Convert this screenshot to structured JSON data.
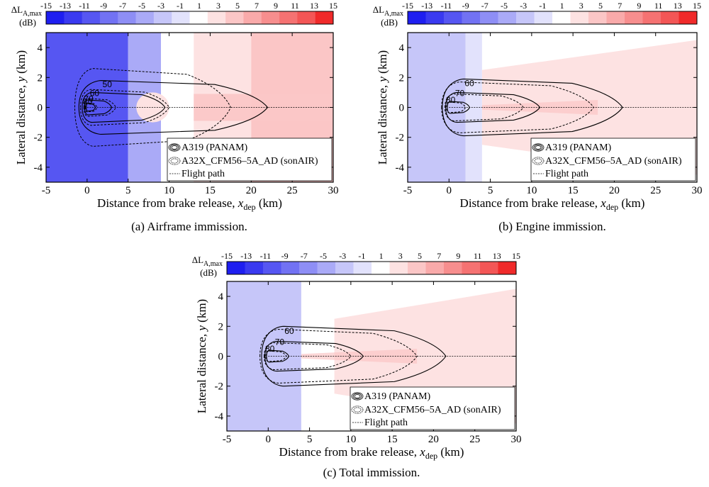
{
  "colorbar": {
    "ticks": [
      "-15",
      "-13",
      "-11",
      "-9",
      "-7",
      "-5",
      "-3",
      "-1",
      "1",
      "3",
      "5",
      "7",
      "9",
      "11",
      "13",
      "15"
    ],
    "label_main": "ΔL",
    "label_sub": "A,max",
    "unit": "(dB)",
    "colors": [
      "#1e1ef0",
      "#3a3af0",
      "#5656f2",
      "#7272f3",
      "#8e8ef5",
      "#aaaaf7",
      "#c6c6f9",
      "#e2e2fc",
      "#ffffff",
      "#fde2e2",
      "#fbc6c6",
      "#f9aaaa",
      "#f78e8e",
      "#f57272",
      "#f35656",
      "#f02a2a"
    ]
  },
  "axes_common": {
    "xlabel_main": "Distance from brake release, ",
    "xlabel_var": "x",
    "xlabel_sub": "dep",
    "xlabel_unit": " (km)",
    "ylabel_main": "Lateral distance, ",
    "ylabel_var": "y",
    "ylabel_unit": " (km)",
    "xlim": [
      -5,
      30
    ],
    "ylim": [
      -5,
      5
    ],
    "xticks": [
      "-5",
      "0",
      "5",
      "10",
      "15",
      "20",
      "25",
      "30"
    ],
    "yticks": [
      "-4",
      "-2",
      "0",
      "2",
      "4"
    ]
  },
  "legend": {
    "entry1": "A319 (PANAM)",
    "entry2": "A32X_CFM56–5A_AD (sonAIR)",
    "entry3": "Flight path"
  },
  "chart_data": [
    {
      "type": "heatmap",
      "title": "(a) Airframe immission.",
      "contour_labels": [
        "50",
        "60",
        "70",
        "80"
      ],
      "panam_contours": [
        {
          "level": 50,
          "x_min": -1.0,
          "x_max": 22,
          "half_width": 1.8
        },
        {
          "level": 60,
          "x_min": -0.6,
          "x_max": 9.5,
          "half_width": 1.0
        },
        {
          "level": 70,
          "x_min": -0.3,
          "x_max": 3.0,
          "half_width": 0.5
        },
        {
          "level": 80,
          "x_min": -0.1,
          "x_max": 1.0,
          "half_width": 0.25
        }
      ],
      "sonair_contours": [
        {
          "level": 50,
          "x_min": -1.5,
          "x_max": 17.5,
          "half_width": 2.6
        },
        {
          "level": 60,
          "x_min": -0.8,
          "x_max": 10,
          "half_width": 1.2
        },
        {
          "level": 70,
          "x_min": -0.4,
          "x_max": 3.5,
          "half_width": 0.6
        },
        {
          "level": 80,
          "x_min": -0.2,
          "x_max": 1.2,
          "half_width": 0.3
        }
      ],
      "difference_field_db": {
        "x_lt_5": -11,
        "x_5_to_9": -5,
        "x_9_to_13": 1,
        "x_13_to_20": 3,
        "x_gt_20": 5
      }
    },
    {
      "type": "heatmap",
      "title": "(b) Engine immission.",
      "contour_labels": [
        "60",
        "70",
        "80"
      ],
      "panam_contours": [
        {
          "level": 60,
          "x_min": -0.8,
          "x_max": 21,
          "half_width": 1.9
        },
        {
          "level": 70,
          "x_min": -0.4,
          "x_max": 11,
          "half_width": 1.0
        },
        {
          "level": 80,
          "x_min": -0.2,
          "x_max": 2.5,
          "half_width": 0.4
        }
      ],
      "sonair_contours": [
        {
          "level": 60,
          "x_min": -0.9,
          "x_max": 17.5,
          "half_width": 1.7
        },
        {
          "level": 70,
          "x_min": -0.5,
          "x_max": 9,
          "half_width": 0.9
        },
        {
          "level": 80,
          "x_min": -0.3,
          "x_max": 2.0,
          "half_width": 0.35
        }
      ],
      "difference_field_db": {
        "x_lt_2": -3,
        "x_2_to_4": -1,
        "x_gt_4": 3
      }
    },
    {
      "type": "heatmap",
      "title": "(c) Total immission.",
      "contour_labels": [
        "60",
        "70",
        "80"
      ],
      "panam_contours": [
        {
          "level": 60,
          "x_min": -0.8,
          "x_max": 21.5,
          "half_width": 2.0
        },
        {
          "level": 70,
          "x_min": -0.4,
          "x_max": 11.5,
          "half_width": 1.0
        },
        {
          "level": 80,
          "x_min": -0.2,
          "x_max": 2.5,
          "half_width": 0.4
        }
      ],
      "sonair_contours": [
        {
          "level": 60,
          "x_min": -1.0,
          "x_max": 18,
          "half_width": 1.8
        },
        {
          "level": 70,
          "x_min": -0.5,
          "x_max": 10,
          "half_width": 0.9
        },
        {
          "level": 80,
          "x_min": -0.3,
          "x_max": 2.2,
          "half_width": 0.35
        }
      ],
      "difference_field_db": {
        "x_lt_4": -3,
        "x_4_to_8": 1,
        "x_gt_8": 3
      }
    }
  ]
}
